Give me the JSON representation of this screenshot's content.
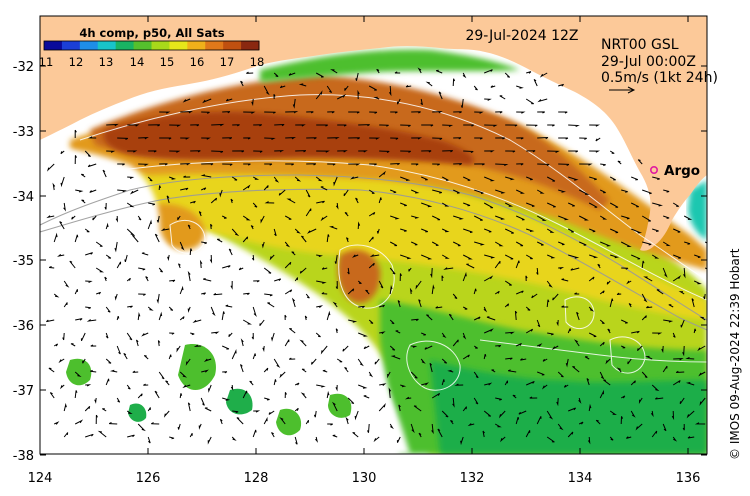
{
  "map": {
    "colorbar_title": "4h comp, p50, All Sats",
    "colorbar_ticks": [
      "11",
      "12",
      "13",
      "14",
      "15",
      "16",
      "17",
      "18"
    ],
    "colorbar_colors": [
      "#0a0a9a",
      "#1b3fd6",
      "#1e8ee8",
      "#18c4c9",
      "#19b463",
      "#55c02d",
      "#a8d91a",
      "#e6e61a",
      "#f0b01a",
      "#e0781a",
      "#c05010",
      "#8a2810"
    ],
    "datetime": "29-Jul-2024 12Z",
    "product": "NRT00 GSL",
    "product_time": "29-Jul 00:00Z",
    "scale_label": "0.5m/s (1kt 24h)",
    "argo_label": "Argo",
    "credit": "© IMOS 09-Aug-2024 22:39 Hobart",
    "x_ticks": [
      "124",
      "126",
      "128",
      "130",
      "132",
      "134",
      "136"
    ],
    "y_ticks": [
      "-32",
      "-33",
      "-34",
      "-35",
      "-36",
      "-37",
      "-38"
    ],
    "colors": {
      "land": "#fcc999",
      "warm_deep": "#a8400f",
      "warm": "#c8691a",
      "orange": "#e29a1e",
      "yellow": "#e8d51a",
      "yellowgreen": "#b9d51a",
      "green": "#4dbf2d",
      "deepgreen": "#1fae4a",
      "teal": "#1ec7b0",
      "argo_marker": "#e01aa0",
      "contour": "#ffffff",
      "bathy": "#9a9a9a"
    }
  }
}
